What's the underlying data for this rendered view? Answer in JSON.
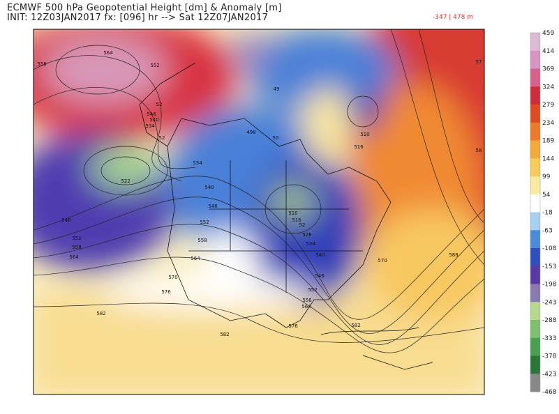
{
  "header": {
    "title": "ECMWF 500 hPa Geopotential Height [dm] & Anomaly [m]",
    "subtitle": "INIT: 12Z03JAN2017 fx: [096] hr --> Sat 12Z07JAN2017",
    "range": "-347 | 478 m"
  },
  "colorbar": {
    "labels": [
      "459",
      "414",
      "369",
      "324",
      "279",
      "234",
      "189",
      "144",
      "99",
      "54",
      "-18",
      "-63",
      "-108",
      "-153",
      "-198",
      "-243",
      "-288",
      "-333",
      "-378",
      "-423",
      "-468"
    ],
    "colors": [
      "#dcbcd4",
      "#d895c4",
      "#d8608c",
      "#d02a3c",
      "#e04a20",
      "#ee7a28",
      "#f6a838",
      "#f8cc58",
      "#faeaa0",
      "#ffffff",
      "#a8d0f0",
      "#4a8ad8",
      "#2f4fc0",
      "#5a3aa8",
      "#8a7ab0",
      "#b8d890",
      "#7ec070",
      "#48a050",
      "#2a7838",
      "#888888"
    ]
  },
  "map": {
    "contour_labels": [
      "564",
      "558",
      "552",
      "546",
      "540",
      "534",
      "52",
      "52",
      "522",
      "546",
      "552",
      "558",
      "564",
      "534",
      "540",
      "546",
      "552",
      "558",
      "564",
      "570",
      "576",
      "582",
      "582",
      "576",
      "582",
      "570",
      "588",
      "57",
      "58",
      "498",
      "49",
      "510",
      "516",
      "50",
      "510",
      "516",
      "52",
      "528",
      "534",
      "540",
      "546",
      "552",
      "558",
      "564"
    ]
  }
}
